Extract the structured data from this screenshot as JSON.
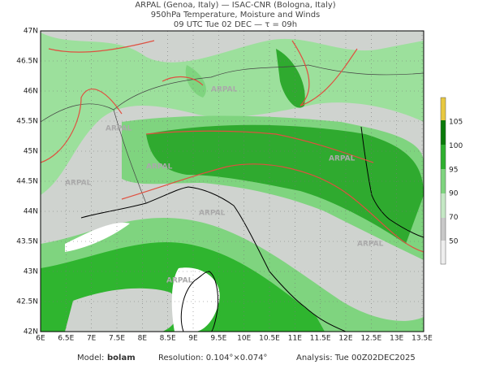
{
  "header": {
    "line1": "ARPAL (Genoa, Italy)  —  ISAC-CNR (Bologna, Italy)",
    "line2": "950hPa Temperature, Moisture and Winds",
    "line3": "09 UTC Tue 02 DEC  —  τ = 09h"
  },
  "watermark": "ARPAL",
  "axes": {
    "y_labels": [
      "47N",
      "46.5N",
      "46N",
      "45.5N",
      "45N",
      "44.5N",
      "44N",
      "43.5N",
      "43N",
      "42.5N",
      "42N"
    ],
    "x_labels": [
      "6E",
      "6.5E",
      "7E",
      "7.5E",
      "8E",
      "8.5E",
      "9E",
      "9.5E",
      "10E",
      "10.5E",
      "11E",
      "11.5E",
      "12E",
      "12.5E",
      "13E",
      "13.5E"
    ]
  },
  "colorbar": {
    "labels": [
      105,
      100,
      95,
      90,
      70,
      50
    ]
  },
  "footer": {
    "model_label": "Model:",
    "model": "bolam",
    "resolution": "Resolution: 0.104°×0.074°",
    "analysis": "Analysis: Tue 00Z02DEC2025"
  }
}
